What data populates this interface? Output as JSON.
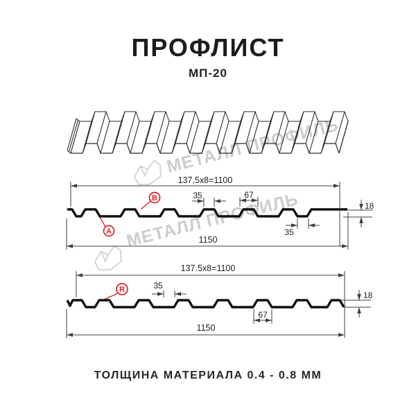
{
  "header": {
    "title": "ПРОФЛИСТ",
    "subtitle": "МП-20"
  },
  "watermark": {
    "text": "МЕТАЛЛ ПРОФИЛЬ"
  },
  "footer": {
    "note": "ТОЛЩИНА МАТЕРИАЛА 0.4 - 0.8 ММ"
  },
  "colors": {
    "red": "#e31e24",
    "ink": "#1c1c1c",
    "dim": "#3f3f3f",
    "profile": "#101010",
    "sheet_line": "#2a2a2a",
    "watermark": "#c8c8c8"
  },
  "top_profile": {
    "pitch_formula": "137,5x8=1100",
    "rib_top_width": "35",
    "rib_base_width": "67",
    "profile_height": "18",
    "overall_width": "1150",
    "overlap_width": "35",
    "side_a_label": "A",
    "side_b_label": "B"
  },
  "bottom_profile": {
    "pitch_formula": "137.5x8=1100",
    "rib_top_width": "35",
    "rib_base_width": "67",
    "profile_height": "18",
    "overall_width": "1150",
    "side_r_label": "R"
  }
}
